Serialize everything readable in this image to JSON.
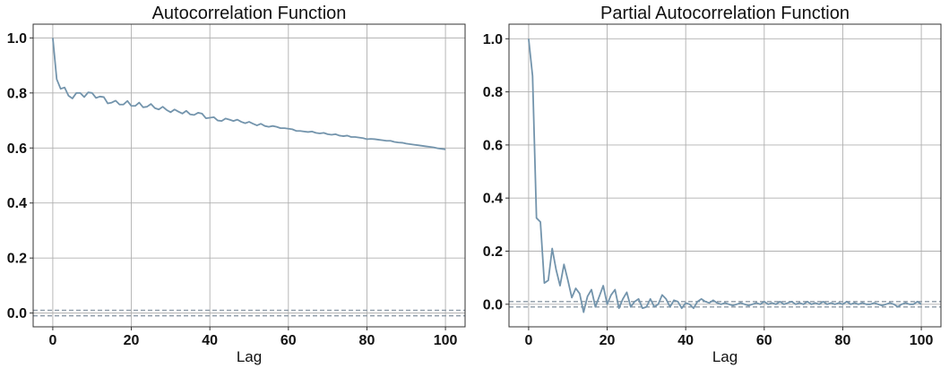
{
  "colors": {
    "series": "#7394ac",
    "reference": "#8c99a6"
  },
  "chart_data": [
    {
      "type": "line",
      "title": "Autocorrelation Function",
      "xlabel": "Lag",
      "ylabel": "",
      "xlim": [
        -5,
        105
      ],
      "ylim": [
        -0.05,
        1.05
      ],
      "xticks": [
        0,
        20,
        40,
        60,
        80,
        100
      ],
      "yticks": [
        0.0,
        0.2,
        0.4,
        0.6,
        0.8,
        1.0
      ],
      "grid": true,
      "reference_lines": [
        0.01,
        -0.01
      ],
      "series": [
        {
          "x": [
            0,
            1,
            2,
            3,
            4,
            5,
            6,
            7,
            8,
            9,
            10,
            11,
            12,
            13,
            14,
            15,
            16,
            17,
            18,
            19,
            20,
            21,
            22,
            23,
            24,
            25,
            26,
            27,
            28,
            29,
            30,
            31,
            32,
            33,
            34,
            35,
            36,
            37,
            38,
            39,
            40,
            41,
            42,
            43,
            44,
            45,
            46,
            47,
            48,
            49,
            50,
            51,
            52,
            53,
            54,
            55,
            56,
            57,
            58,
            59,
            60,
            61,
            62,
            63,
            64,
            65,
            66,
            67,
            68,
            69,
            70,
            71,
            72,
            73,
            74,
            75,
            76,
            77,
            78,
            79,
            80,
            81,
            82,
            83,
            84,
            85,
            86,
            87,
            88,
            89,
            90,
            91,
            92,
            93,
            94,
            95,
            96,
            97,
            98,
            99,
            100
          ],
          "values": [
            1.0,
            0.85,
            0.815,
            0.82,
            0.79,
            0.78,
            0.8,
            0.8,
            0.785,
            0.802,
            0.8,
            0.782,
            0.787,
            0.785,
            0.762,
            0.765,
            0.772,
            0.758,
            0.758,
            0.771,
            0.753,
            0.753,
            0.765,
            0.748,
            0.75,
            0.76,
            0.745,
            0.74,
            0.75,
            0.738,
            0.73,
            0.74,
            0.732,
            0.725,
            0.735,
            0.722,
            0.72,
            0.728,
            0.725,
            0.708,
            0.71,
            0.712,
            0.7,
            0.698,
            0.707,
            0.703,
            0.698,
            0.703,
            0.695,
            0.69,
            0.695,
            0.688,
            0.682,
            0.688,
            0.68,
            0.677,
            0.68,
            0.677,
            0.672,
            0.672,
            0.67,
            0.668,
            0.662,
            0.662,
            0.66,
            0.658,
            0.66,
            0.655,
            0.653,
            0.655,
            0.65,
            0.648,
            0.65,
            0.645,
            0.643,
            0.645,
            0.64,
            0.64,
            0.638,
            0.636,
            0.632,
            0.633,
            0.632,
            0.63,
            0.628,
            0.626,
            0.626,
            0.622,
            0.62,
            0.619,
            0.616,
            0.614,
            0.612,
            0.61,
            0.608,
            0.606,
            0.604,
            0.602,
            0.599,
            0.597,
            0.595
          ]
        }
      ]
    },
    {
      "type": "line",
      "title": "Partial Autocorrelation Function",
      "xlabel": "Lag",
      "ylabel": "",
      "xlim": [
        -5,
        105
      ],
      "ylim": [
        -0.085,
        1.055
      ],
      "xticks": [
        0,
        20,
        40,
        60,
        80,
        100
      ],
      "yticks": [
        0.0,
        0.2,
        0.4,
        0.6,
        0.8,
        1.0
      ],
      "grid": true,
      "reference_lines": [
        0.01,
        -0.01
      ],
      "series": [
        {
          "x": [
            0,
            1,
            2,
            3,
            4,
            5,
            6,
            7,
            8,
            9,
            10,
            11,
            12,
            13,
            14,
            15,
            16,
            17,
            18,
            19,
            20,
            21,
            22,
            23,
            24,
            25,
            26,
            27,
            28,
            29,
            30,
            31,
            32,
            33,
            34,
            35,
            36,
            37,
            38,
            39,
            40,
            41,
            42,
            43,
            44,
            45,
            46,
            47,
            48,
            49,
            50,
            51,
            52,
            53,
            54,
            55,
            56,
            57,
            58,
            59,
            60,
            61,
            62,
            63,
            64,
            65,
            66,
            67,
            68,
            69,
            70,
            71,
            72,
            73,
            74,
            75,
            76,
            77,
            78,
            79,
            80,
            81,
            82,
            83,
            84,
            85,
            86,
            87,
            88,
            89,
            90,
            91,
            92,
            93,
            94,
            95,
            96,
            97,
            98,
            99,
            100
          ],
          "values": [
            1.0,
            0.86,
            0.325,
            0.31,
            0.08,
            0.09,
            0.21,
            0.13,
            0.07,
            0.15,
            0.09,
            0.025,
            0.06,
            0.04,
            -0.03,
            0.03,
            0.055,
            -0.01,
            0.03,
            0.07,
            0.0,
            0.035,
            0.055,
            -0.015,
            0.02,
            0.045,
            -0.01,
            0.01,
            0.02,
            -0.015,
            -0.01,
            0.02,
            -0.01,
            0.0,
            0.035,
            0.02,
            -0.01,
            0.015,
            0.01,
            -0.015,
            0.005,
            0.0,
            -0.015,
            0.01,
            0.02,
            0.01,
            0.005,
            0.015,
            0.005,
            0.0,
            0.005,
            0.0,
            -0.005,
            0.0,
            0.005,
            0.0,
            -0.005,
            0.0,
            0.005,
            0.0,
            0.01,
            0.0,
            0.005,
            0.0,
            0.01,
            0.0,
            0.005,
            0.01,
            0.0,
            0.005,
            0.0,
            0.01,
            0.0,
            0.005,
            0.0,
            0.01,
            0.0,
            0.005,
            0.0,
            0.005,
            0.0,
            0.01,
            0.0,
            0.005,
            0.0,
            0.005,
            0.0,
            0.0,
            0.005,
            0.0,
            -0.005,
            0.0,
            0.005,
            0.0,
            -0.01,
            0.0,
            0.005,
            0.0,
            0.0,
            0.01,
            0.0
          ]
        }
      ]
    }
  ]
}
